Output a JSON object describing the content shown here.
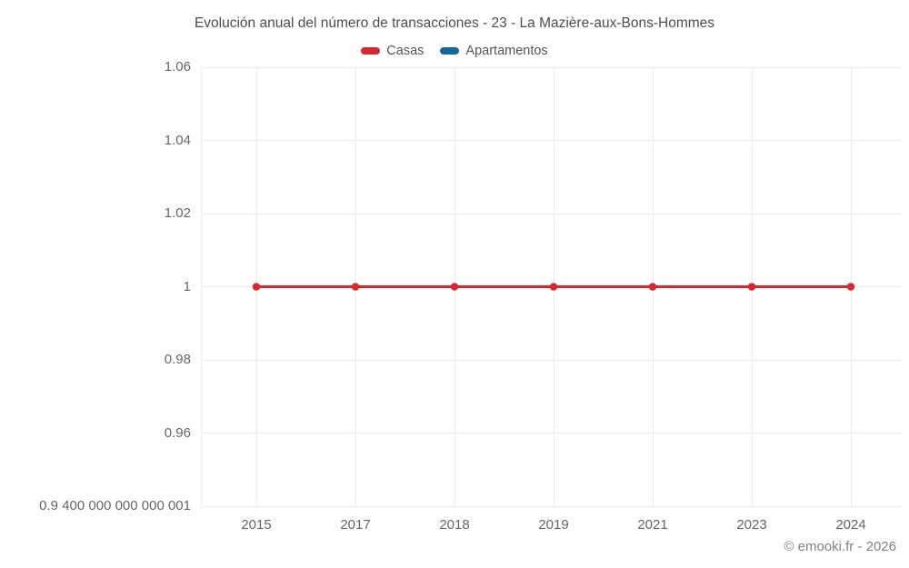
{
  "copyright": "© emooki.fr - 2026",
  "colors": {
    "grid": "#ececec",
    "casas": "#d6282e",
    "apartamentos": "#17679c"
  },
  "chart_data": {
    "type": "line",
    "title": "Evolución anual del número de transacciones - 23 - La Mazière-aux-Bons-Hommes",
    "categories": [
      "2015",
      "2017",
      "2018",
      "2019",
      "2021",
      "2023",
      "2024"
    ],
    "series": [
      {
        "name": "Casas",
        "color": "#d6282e",
        "values": [
          1,
          1,
          1,
          1,
          1,
          1,
          1
        ]
      },
      {
        "name": "Apartamentos",
        "color": "#17679c",
        "values": []
      }
    ],
    "y_ticks": [
      {
        "value": 0.9400000000000001,
        "label": "0.9 400 000 000 000 001"
      },
      {
        "value": 0.96,
        "label": "0.96"
      },
      {
        "value": 0.98,
        "label": "0.98"
      },
      {
        "value": 1,
        "label": "1"
      },
      {
        "value": 1.02,
        "label": "1.02"
      },
      {
        "value": 1.04,
        "label": "1.04"
      },
      {
        "value": 1.06,
        "label": "1.06"
      },
      {
        "value": 1.06,
        "label": ""
      }
    ],
    "ylim": [
      0.94,
      1.06
    ],
    "grid": true,
    "legend_position": "top"
  }
}
